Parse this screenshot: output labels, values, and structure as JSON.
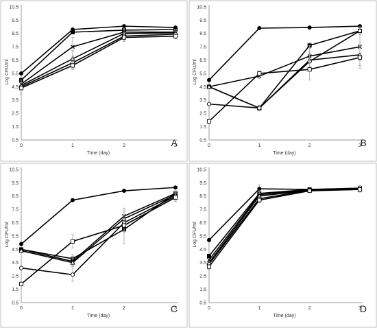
{
  "chart_data": [
    {
      "panel": "A",
      "type": "line",
      "xlabel": "Time (day)",
      "ylabel": "Log CFU/ml",
      "ylim": [
        0.5,
        10.5
      ],
      "yticks": [
        "0.5",
        "1.5",
        "2.5",
        "3.5",
        "4.5",
        "5.5",
        "6.5",
        "7.5",
        "8.5",
        "9.5",
        "10.5"
      ],
      "x": [
        0,
        1,
        2,
        3
      ],
      "xticks": [
        "0",
        "1",
        "2",
        "3"
      ],
      "series": [
        {
          "marker": "filled-circle",
          "values": [
            5.5,
            8.8,
            9.05,
            8.95
          ],
          "err": [
            0.1,
            0.1,
            0.1,
            0.1
          ]
        },
        {
          "marker": "filled-square",
          "values": [
            5.0,
            8.6,
            8.75,
            8.8
          ],
          "err": [
            0.1,
            0.1,
            0.1,
            0.1
          ]
        },
        {
          "marker": "cross",
          "values": [
            4.7,
            7.5,
            8.6,
            8.6
          ],
          "err": [
            0.1,
            0.7,
            0.3,
            0.2
          ]
        },
        {
          "marker": "open-triangle",
          "values": [
            4.6,
            6.6,
            8.5,
            8.55
          ],
          "err": [
            0.2,
            0.6,
            0.3,
            0.2
          ]
        },
        {
          "marker": "open-circle",
          "values": [
            4.5,
            6.3,
            8.3,
            8.45
          ],
          "err": [
            0.5,
            0.4,
            0.3,
            0.2
          ]
        },
        {
          "marker": "open-square",
          "values": [
            4.4,
            6.1,
            8.2,
            8.3
          ],
          "err": [
            0.1,
            0.3,
            0.3,
            0.2
          ]
        }
      ]
    },
    {
      "panel": "B",
      "type": "line",
      "xlabel": "Time (day)",
      "ylabel": "Log CFU/ml",
      "ylim": [
        0.5,
        10.5
      ],
      "yticks": [
        "0.5",
        "1.5",
        "2.5",
        "3.5",
        "4.5",
        "5.5",
        "6.5",
        "7.5",
        "8.5",
        "9.5",
        "10.5"
      ],
      "x": [
        0,
        1,
        2,
        3
      ],
      "xticks": [
        "0",
        "1",
        "2",
        "3"
      ],
      "series": [
        {
          "marker": "filled-circle",
          "values": [
            5.0,
            8.9,
            8.95,
            9.05
          ],
          "err": [
            0.1,
            0.1,
            0.1,
            0.1
          ]
        },
        {
          "marker": "filled-square",
          "values": [
            4.5,
            2.9,
            7.6,
            8.7
          ],
          "err": [
            0.1,
            0.2,
            0.2,
            0.2
          ]
        },
        {
          "marker": "cross",
          "values": [
            4.5,
            5.3,
            6.8,
            7.5
          ],
          "err": [
            0.1,
            0.2,
            0.8,
            1.0
          ]
        },
        {
          "marker": "open-triangle",
          "values": [
            4.5,
            2.9,
            6.5,
            6.9
          ],
          "err": [
            0.1,
            0.2,
            0.6,
            0.8
          ]
        },
        {
          "marker": "open-circle",
          "values": [
            3.2,
            2.9,
            6.4,
            8.7
          ],
          "err": [
            0.1,
            0.2,
            0.6,
            0.3
          ]
        },
        {
          "marker": "open-square",
          "values": [
            1.9,
            5.5,
            5.8,
            6.7
          ],
          "err": [
            0.1,
            0.2,
            0.8,
            0.8
          ]
        }
      ]
    },
    {
      "panel": "C",
      "type": "line",
      "xlabel": "Time (day)",
      "ylabel": "Log CFU/ml",
      "ylim": [
        0.5,
        10.5
      ],
      "yticks": [
        "0.5",
        "1.5",
        "2.5",
        "3.5",
        "4.5",
        "5.5",
        "6.5",
        "7.5",
        "8.5",
        "9.5",
        "10.5"
      ],
      "x": [
        0,
        1,
        2,
        3
      ],
      "xticks": [
        "0",
        "1",
        "2",
        "3"
      ],
      "series": [
        {
          "marker": "filled-circle",
          "values": [
            4.9,
            8.2,
            8.9,
            9.15
          ],
          "err": [
            0.1,
            0.1,
            0.15,
            0.1
          ]
        },
        {
          "marker": "filled-square",
          "values": [
            4.5,
            3.8,
            6.0,
            8.7
          ],
          "err": [
            0.1,
            0.3,
            1.1,
            0.2
          ]
        },
        {
          "marker": "cross",
          "values": [
            4.5,
            3.6,
            7.0,
            8.7
          ],
          "err": [
            0.1,
            0.3,
            0.6,
            0.2
          ]
        },
        {
          "marker": "open-triangle",
          "values": [
            4.4,
            3.5,
            6.8,
            8.6
          ],
          "err": [
            0.1,
            0.3,
            0.6,
            0.2
          ]
        },
        {
          "marker": "open-circle",
          "values": [
            3.1,
            2.6,
            6.5,
            8.5
          ],
          "err": [
            0.1,
            0.5,
            0.6,
            0.3
          ]
        },
        {
          "marker": "open-square",
          "values": [
            1.9,
            5.1,
            6.3,
            8.4
          ],
          "err": [
            0.1,
            0.5,
            0.5,
            0.3
          ]
        }
      ]
    },
    {
      "panel": "D",
      "type": "line",
      "xlabel": "Time (day)",
      "ylabel": "Log CFU/ml",
      "ylim": [
        0.5,
        10.5
      ],
      "yticks": [
        "0.5",
        "1.5",
        "2.5",
        "3.5",
        "4.5",
        "5.5",
        "6.5",
        "7.5",
        "8.5",
        "9.5",
        "10.5"
      ],
      "x": [
        0,
        1,
        2,
        3
      ],
      "xticks": [
        "0",
        "1",
        "2",
        "3"
      ],
      "series": [
        {
          "marker": "filled-circle",
          "values": [
            5.2,
            9.05,
            9.0,
            9.05
          ],
          "err": [
            0.1,
            0.3,
            0.1,
            0.2
          ]
        },
        {
          "marker": "filled-square",
          "values": [
            4.0,
            8.7,
            9.0,
            9.1
          ],
          "err": [
            0.1,
            0.2,
            0.1,
            0.2
          ]
        },
        {
          "marker": "cross",
          "values": [
            3.7,
            8.6,
            9.0,
            9.05
          ],
          "err": [
            0.1,
            0.2,
            0.1,
            0.2
          ]
        },
        {
          "marker": "open-triangle",
          "values": [
            3.5,
            8.5,
            8.95,
            9.0
          ],
          "err": [
            0.1,
            0.2,
            0.1,
            0.2
          ]
        },
        {
          "marker": "open-circle",
          "values": [
            3.4,
            8.3,
            8.95,
            9.0
          ],
          "err": [
            0.2,
            0.2,
            0.1,
            0.2
          ]
        },
        {
          "marker": "open-square",
          "values": [
            3.2,
            8.2,
            8.9,
            9.0
          ],
          "err": [
            0.2,
            0.2,
            0.1,
            0.2
          ]
        }
      ]
    }
  ]
}
